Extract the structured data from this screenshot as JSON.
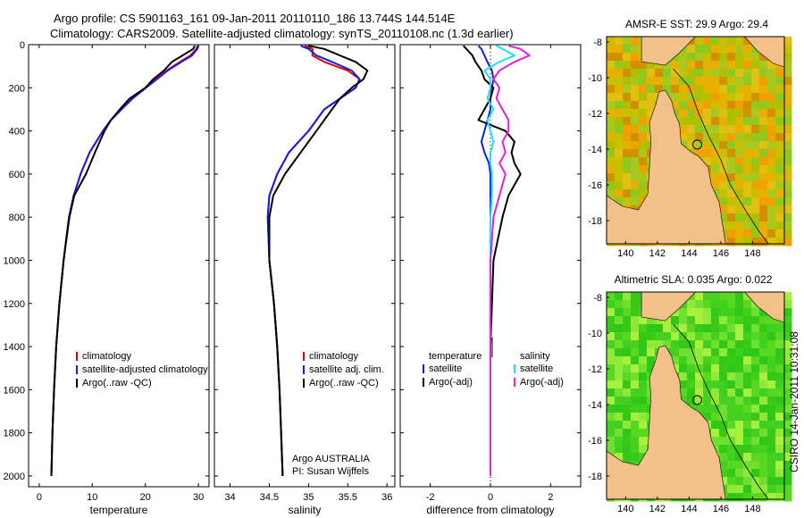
{
  "header": {
    "title_line1": "Argo profile: CS 5901163_161 09-Jan-2011 20110110_186 13.744S 144.514E",
    "title_line2": "Climatology: CARS2009. Satellite-adjusted climatology: synTS_20110108.nc (1.3d earlier)"
  },
  "colors": {
    "climatology": "#e00000",
    "satellite": "#1020e0",
    "argo": "#000000",
    "salinity_satellite": "#20e0f0",
    "salinity_argo": "#e020e0",
    "land": "#f4c08a"
  },
  "chart_data": [
    {
      "type": "line",
      "name": "temperature-profile",
      "xlabel": "temperature",
      "ylabel": "",
      "xlim": [
        -2,
        32
      ],
      "ylim": [
        2050,
        0
      ],
      "xticks": [
        0,
        10,
        20,
        30
      ],
      "yticks": [
        0,
        200,
        400,
        600,
        800,
        1000,
        1200,
        1400,
        1600,
        1800,
        2000
      ],
      "depth": [
        5,
        20,
        50,
        80,
        120,
        160,
        200,
        250,
        300,
        350,
        400,
        500,
        600,
        700,
        800,
        1000,
        1200,
        1400,
        1600,
        1800,
        2000
      ],
      "series": [
        {
          "name": "climatology",
          "color": "#e00000",
          "values": [
            29.8,
            29.6,
            28.5,
            26.5,
            24.0,
            22.0,
            20.0,
            17.5,
            15.5,
            13.5,
            12.0,
            9.5,
            7.8,
            6.5,
            5.6,
            4.6,
            3.8,
            3.2,
            2.8,
            2.5,
            2.3
          ]
        },
        {
          "name": "satellite-adjusted climatology",
          "color": "#1020e0",
          "values": [
            30.0,
            29.8,
            28.8,
            26.8,
            24.2,
            22.2,
            20.1,
            17.6,
            15.5,
            13.5,
            12.0,
            9.5,
            7.8,
            6.5,
            5.6,
            4.6,
            3.8,
            3.2,
            2.8,
            2.5,
            2.3
          ]
        },
        {
          "name": "Argo(..raw -QC)",
          "color": "#000000",
          "values": [
            29.3,
            29.0,
            27.0,
            25.0,
            23.5,
            21.5,
            20.0,
            17.0,
            15.2,
            13.5,
            12.3,
            10.5,
            8.8,
            6.6,
            5.7,
            4.6,
            3.8,
            3.2,
            2.8,
            2.5,
            2.3
          ]
        }
      ],
      "legend": [
        "climatology",
        "satellite-adjusted climatology",
        "Argo(..raw -QC)"
      ],
      "legend_position": "bottom-right"
    },
    {
      "type": "line",
      "name": "salinity-profile",
      "xlabel": "salinity",
      "xlim": [
        33.8,
        36.1
      ],
      "ylim": [
        2050,
        0
      ],
      "xticks": [
        34,
        34.5,
        35,
        35.5,
        36
      ],
      "depth": [
        5,
        20,
        50,
        80,
        120,
        160,
        200,
        250,
        300,
        400,
        500,
        600,
        700,
        800,
        1000,
        1200,
        1400,
        1600,
        1800,
        2000
      ],
      "series": [
        {
          "name": "climatology",
          "color": "#e00000",
          "values": [
            34.95,
            35.05,
            35.05,
            35.2,
            35.5,
            35.65,
            35.6,
            35.4,
            35.2,
            35.0,
            34.75,
            34.6,
            34.5,
            34.48,
            34.5,
            34.56,
            34.6,
            34.63,
            34.65,
            34.67
          ]
        },
        {
          "name": "satellite adj. clim.",
          "color": "#1020e0",
          "values": [
            34.9,
            35.0,
            35.1,
            35.3,
            35.55,
            35.65,
            35.6,
            35.4,
            35.2,
            35.0,
            34.75,
            34.6,
            34.5,
            34.48,
            34.5,
            34.56,
            34.6,
            34.63,
            34.65,
            34.67
          ]
        },
        {
          "name": "Argo(..raw -QC)",
          "color": "#000000",
          "values": [
            35.0,
            35.2,
            35.4,
            35.6,
            35.75,
            35.7,
            35.55,
            35.4,
            35.3,
            35.1,
            34.9,
            34.7,
            34.55,
            34.5,
            34.5,
            34.56,
            34.6,
            34.63,
            34.65,
            34.67
          ]
        }
      ],
      "legend": [
        "climatology",
        "satellite adj. clim.",
        "Argo(..raw -QC)"
      ],
      "annotation_line1": "Argo AUSTRALIA",
      "annotation_line2": "PI: Susan Wijffels"
    },
    {
      "type": "line",
      "name": "difference-profile",
      "xlabel": "difference from climatology",
      "xlim": [
        -3,
        3
      ],
      "ylim": [
        2050,
        0
      ],
      "xticks": [
        -2,
        0,
        2
      ],
      "depth": [
        5,
        20,
        50,
        80,
        120,
        160,
        200,
        250,
        300,
        350,
        400,
        450,
        500,
        550,
        600,
        700,
        800,
        1000,
        1200,
        1400,
        1600,
        1800,
        2000
      ],
      "series": [
        {
          "name": "temperature satellite",
          "color": "#1020e0",
          "values": [
            -0.4,
            -0.3,
            -0.2,
            -0.1,
            0.05,
            0.1,
            0.05,
            0,
            0,
            -0.1,
            -0.2,
            -0.3,
            -0.2,
            -0.05,
            0,
            0,
            0,
            0,
            0,
            0,
            0,
            0,
            0
          ]
        },
        {
          "name": "temperature Argo(-adj)",
          "color": "#000000",
          "values": [
            -0.9,
            -0.8,
            -0.6,
            -0.5,
            -0.3,
            -0.2,
            0.1,
            0,
            -0.2,
            -0.4,
            0.5,
            0.8,
            0.7,
            0.8,
            1.0,
            0.6,
            0.4,
            0.1,
            0.05,
            0,
            0,
            0,
            0
          ]
        },
        {
          "name": "salinity satellite",
          "color": "#20e0f0",
          "values": [
            0.2,
            0.4,
            0.8,
            0.3,
            -0.2,
            0.0,
            0.0,
            -0.1,
            0.1,
            -0.1,
            0.0,
            0.1,
            0.0,
            0.0,
            0.05,
            0.05,
            0.0,
            0.0,
            0.0,
            0.0,
            0.0,
            0.0,
            0.0
          ]
        },
        {
          "name": "salinity Argo(-adj)",
          "color": "#e020e0",
          "values": [
            0.6,
            1.0,
            1.3,
            0.8,
            0.3,
            0.1,
            0.3,
            0.2,
            0.4,
            0.6,
            0.6,
            0.4,
            0.5,
            0.3,
            0.5,
            0.3,
            0.1,
            0.0,
            0.0,
            0.0,
            0.0,
            0.0,
            0.0
          ]
        }
      ],
      "legend_temperature_heading": "temperature",
      "legend_salinity_heading": "salinity",
      "legend_temperature": [
        "satellite",
        "Argo(-adj)"
      ],
      "legend_salinity": [
        "satellite",
        "Argo(-adj)"
      ]
    },
    {
      "type": "heatmap",
      "name": "sst-map",
      "title": "AMSR-E SST: 29.9  Argo: 29.4",
      "xticks": [
        140,
        142,
        144,
        146,
        148
      ],
      "yticks": [
        -8,
        -10,
        -12,
        -14,
        -16,
        -18
      ],
      "xlim": [
        138.8,
        150
      ],
      "ylim": [
        -19.3,
        -7.7
      ],
      "float_position": [
        144.514,
        -13.744
      ]
    },
    {
      "type": "heatmap",
      "name": "sla-map",
      "title": "Altimetric SLA: 0.035  Argo: 0.022",
      "xticks": [
        140,
        142,
        144,
        146,
        148
      ],
      "yticks": [
        -8,
        -10,
        -12,
        -14,
        -16,
        -18
      ],
      "xlim": [
        138.8,
        150
      ],
      "ylim": [
        -19.3,
        -7.7
      ],
      "float_position": [
        144.514,
        -13.744
      ]
    }
  ],
  "footer": {
    "timestamp": "CSIRO 14-Jan-2011 10:31:08"
  }
}
